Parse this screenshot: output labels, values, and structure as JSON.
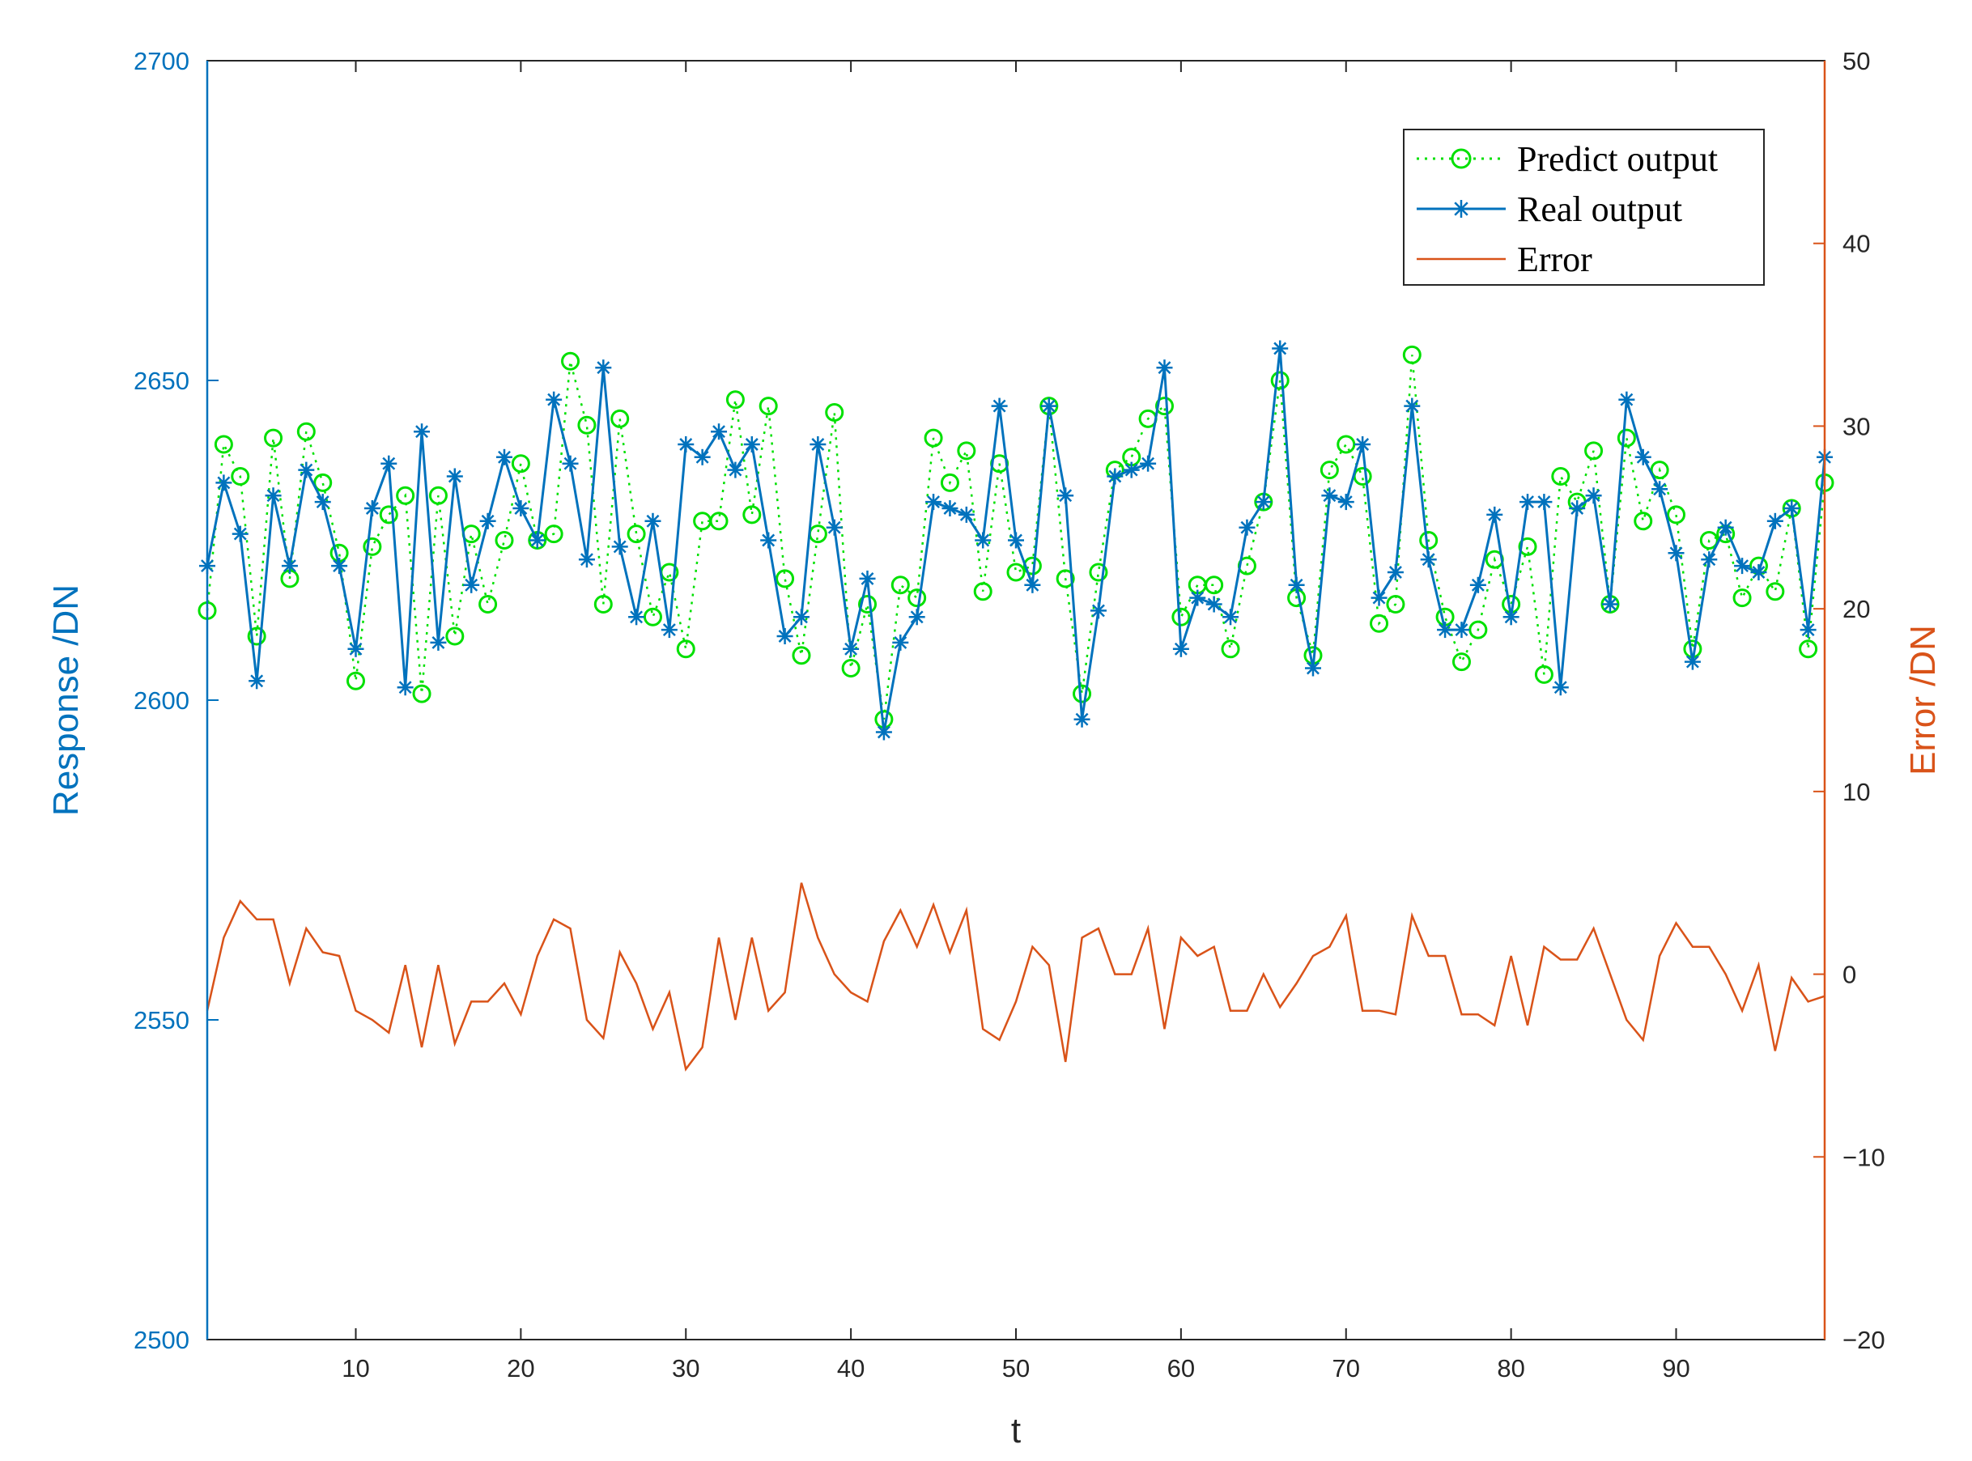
{
  "colors": {
    "predict": "#00E000",
    "real": "#0072BD",
    "error": "#D95319",
    "left_axis": "#0072BD",
    "right_axis": "#D95319",
    "frame": "#262626"
  },
  "chart_data": {
    "type": "line",
    "xlabel": "t",
    "ylabel_left": "Response /DN",
    "ylabel_right": "Error /DN",
    "xlim": [
      1,
      99
    ],
    "ylim_left": [
      2500,
      2700
    ],
    "ylim_right": [
      -20,
      50
    ],
    "x_ticks": [
      10,
      20,
      30,
      40,
      50,
      60,
      70,
      80,
      90
    ],
    "y_left_ticks": [
      2500,
      2550,
      2600,
      2650,
      2700
    ],
    "y_right_ticks": [
      -20,
      -10,
      0,
      10,
      20,
      30,
      40,
      50
    ],
    "y_right_tick_labels": [
      "−20",
      "−10",
      "0",
      "10",
      "20",
      "30",
      "40",
      "50"
    ],
    "legend": [
      "Predict output",
      "Real output",
      "Error"
    ],
    "legend_position": "top-right",
    "series": [
      {
        "name": "Predict output",
        "axis": "left",
        "values": [
          2614,
          2640,
          2635,
          2610,
          2641,
          2619,
          2642,
          2634,
          2623,
          2603,
          2624,
          2629,
          2632,
          2601,
          2632,
          2610,
          2626,
          2615,
          2625,
          2637,
          2625,
          2626,
          2653,
          2643,
          2615,
          2644,
          2626,
          2613,
          2620,
          2608,
          2628,
          2628,
          2647,
          2629,
          2646,
          2619,
          2607,
          2626,
          2645,
          2605,
          2615,
          2597,
          2618,
          2616,
          2641,
          2634,
          2639,
          2617,
          2637,
          2620,
          2621,
          2646,
          2619,
          2601,
          2620,
          2636,
          2638,
          2644,
          2646,
          2613,
          2618,
          2618,
          2608,
          2621,
          2631,
          2650,
          2616,
          2607,
          2636,
          2640,
          2635,
          2612,
          2615,
          2654,
          2625,
          2613,
          2606,
          2611,
          2622,
          2615,
          2624,
          2604,
          2635,
          2631,
          2639,
          2615,
          2641,
          2628,
          2636,
          2629,
          2608,
          2625,
          2626,
          2616,
          2621,
          2617,
          2630,
          2608,
          2634
        ]
      },
      {
        "name": "Real output",
        "axis": "left",
        "values": [
          2621,
          2634,
          2626,
          2603,
          2632,
          2621,
          2636,
          2631,
          2621,
          2608,
          2630,
          2637,
          2602,
          2642,
          2609,
          2635,
          2618,
          2628,
          2638,
          2630,
          2625,
          2647,
          2637,
          2622,
          2652,
          2624,
          2613,
          2628,
          2611,
          2640,
          2638,
          2642,
          2636,
          2640,
          2625,
          2610,
          2613,
          2640,
          2627,
          2608,
          2619,
          2595,
          2609,
          2613,
          2631,
          2630,
          2629,
          2625,
          2646,
          2625,
          2618,
          2646,
          2632,
          2597,
          2614,
          2635,
          2636,
          2637,
          2652,
          2608,
          2616,
          2615,
          2613,
          2627,
          2631,
          2655,
          2618,
          2605,
          2632,
          2631,
          2640,
          2616,
          2620,
          2646,
          2622,
          2611,
          2611,
          2618,
          2629,
          2613,
          2631,
          2631,
          2602,
          2630,
          2632,
          2615,
          2647,
          2638,
          2633,
          2623,
          2606,
          2622,
          2627,
          2621,
          2620,
          2628,
          2630,
          2611,
          2638
        ]
      },
      {
        "name": "Error",
        "axis": "right",
        "values": [
          -2,
          2,
          4,
          3,
          3,
          -0.5,
          2.5,
          1.2,
          1,
          -2,
          -2.5,
          -3.2,
          0.5,
          -4,
          0.5,
          -3.8,
          -1.5,
          -1.5,
          -0.5,
          -2.2,
          1,
          3,
          2.5,
          -2.5,
          -3.5,
          1.2,
          -0.5,
          -3,
          -1,
          -5.2,
          -4,
          2,
          -2.5,
          2,
          -2,
          -1,
          5,
          2,
          0,
          -1,
          -1.5,
          1.8,
          3.5,
          1.5,
          3.8,
          1.2,
          3.5,
          -3,
          -3.6,
          -1.5,
          1.5,
          0.5,
          -4.8,
          2,
          2.5,
          0,
          0,
          2.5,
          -3,
          2,
          1,
          1.5,
          -2,
          -2,
          0,
          -1.8,
          -0.5,
          1,
          1.5,
          3.2,
          -2,
          -2,
          -2.2,
          3.2,
          1,
          1,
          -2.2,
          -2.2,
          -2.8,
          1,
          -2.8,
          1.5,
          0.8,
          0.8,
          2.5,
          0,
          -2.5,
          -3.6,
          1,
          2.8,
          1.5,
          1.5,
          0,
          -2,
          0.5,
          -4.2,
          -0.2,
          -1.5,
          -1.2
        ]
      }
    ]
  }
}
